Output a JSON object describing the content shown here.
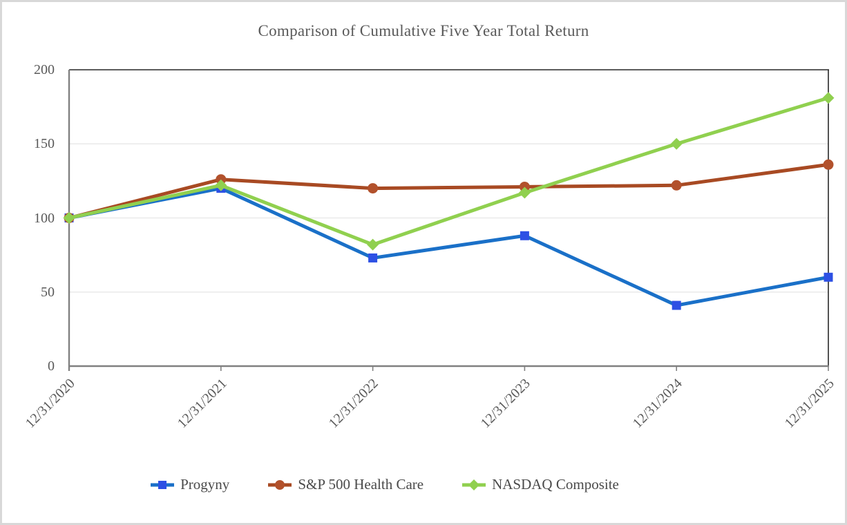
{
  "chart_data": {
    "type": "line",
    "title": "Comparison of Cumulative Five Year Total Return",
    "categories": [
      "12/31/2020",
      "12/31/2021",
      "12/31/2022",
      "12/31/2023",
      "12/31/2024",
      "12/31/2025"
    ],
    "series": [
      {
        "name": "Progyny",
        "marker": "square",
        "line_color": "#1a70c8",
        "marker_color": "#2d50e4",
        "values": [
          100,
          120,
          73,
          88,
          41,
          60
        ]
      },
      {
        "name": "S&P 500 Health Care",
        "marker": "circle",
        "line_color": "#a84a23",
        "marker_color": "#b2512c",
        "values": [
          100,
          126,
          120,
          121,
          122,
          136
        ]
      },
      {
        "name": "NASDAQ Composite",
        "marker": "diamond",
        "line_color": "#90d04f",
        "marker_color": "#90d04f",
        "values": [
          100,
          122,
          82,
          117,
          150,
          181
        ]
      }
    ],
    "yticks": [
      0,
      50,
      100,
      150,
      200
    ],
    "ylim": [
      0,
      200
    ],
    "grid": "horizontal gridlines at 50/100/150",
    "legend_position": "bottom"
  },
  "palette": {
    "axis_line": "#808080",
    "plot_border": "#262626",
    "gridline": "#eaeaea",
    "text": "#595959",
    "legend_text": "#4a4a4a",
    "frame_border": "#d8d8d8",
    "background": "#ffffff"
  }
}
